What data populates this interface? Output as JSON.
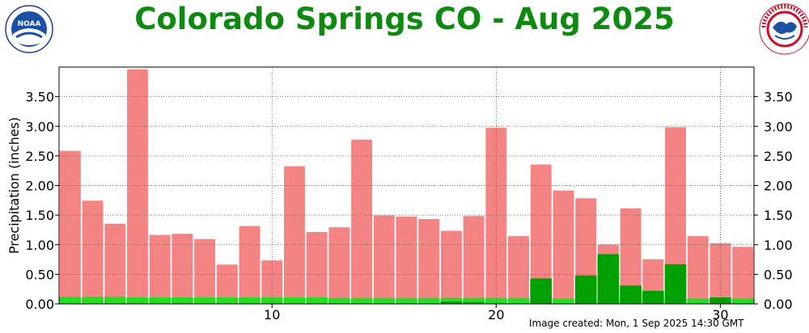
{
  "header": {
    "title": "Colorado Springs CO - Aug 2025",
    "left_logo_text": "NOAA",
    "right_logo_text": "NATIONAL WEATHER SERVICE"
  },
  "footer": {
    "created": "Image created: Mon, 1 Sep 2025 14:30 GMT"
  },
  "colors": {
    "title": "#0f8a10",
    "normal_bar": "#f48484",
    "observed_bar": "#00a000",
    "baseline_bar": "#22dd22",
    "grid": "#555555"
  },
  "chart_data": {
    "type": "bar",
    "ylabel": "Precipitation (inches)",
    "ylim": [
      0,
      4.0
    ],
    "xlim": [
      1,
      31
    ],
    "x_ticks": [
      10,
      20,
      30
    ],
    "y_ticks": [
      "0.00",
      "0.50",
      "1.00",
      "1.50",
      "2.00",
      "2.50",
      "3.00",
      "3.50"
    ],
    "grid": true,
    "categories": [
      1,
      2,
      3,
      4,
      5,
      6,
      7,
      8,
      9,
      10,
      11,
      12,
      13,
      14,
      15,
      16,
      17,
      18,
      19,
      20,
      21,
      22,
      23,
      24,
      25,
      26,
      27,
      28,
      29,
      30,
      31
    ],
    "series": [
      {
        "values": [
          2.59,
          1.75,
          1.36,
          3.97,
          1.17,
          1.19,
          1.1,
          0.67,
          1.32,
          0.74,
          2.33,
          1.22,
          1.3,
          2.78,
          1.5,
          1.48,
          1.44,
          1.24,
          1.49,
          2.98,
          1.15,
          2.36,
          1.92,
          1.79,
          1.01,
          1.62,
          0.76,
          2.99,
          1.15,
          1.03,
          0.97
        ]
      },
      {
        "values": [
          0.12,
          0.12,
          0.12,
          0.11,
          0.11,
          0.11,
          0.11,
          0.11,
          0.11,
          0.11,
          0.11,
          0.11,
          0.1,
          0.1,
          0.1,
          0.1,
          0.1,
          0.1,
          0.1,
          0.1,
          0.1,
          0.1,
          0.09,
          0.09,
          0.09,
          0.09,
          0.09,
          0.09,
          0.09,
          0.09,
          0.09
        ]
      },
      {
        "values": [
          0,
          0,
          0,
          0,
          0,
          0,
          0,
          0,
          0,
          0,
          0,
          0,
          0,
          0,
          0,
          0,
          0,
          0.04,
          0.03,
          0,
          0,
          0.43,
          0,
          0.48,
          0.84,
          0.31,
          0.22,
          0.67,
          0,
          0.11,
          0
        ]
      }
    ]
  }
}
